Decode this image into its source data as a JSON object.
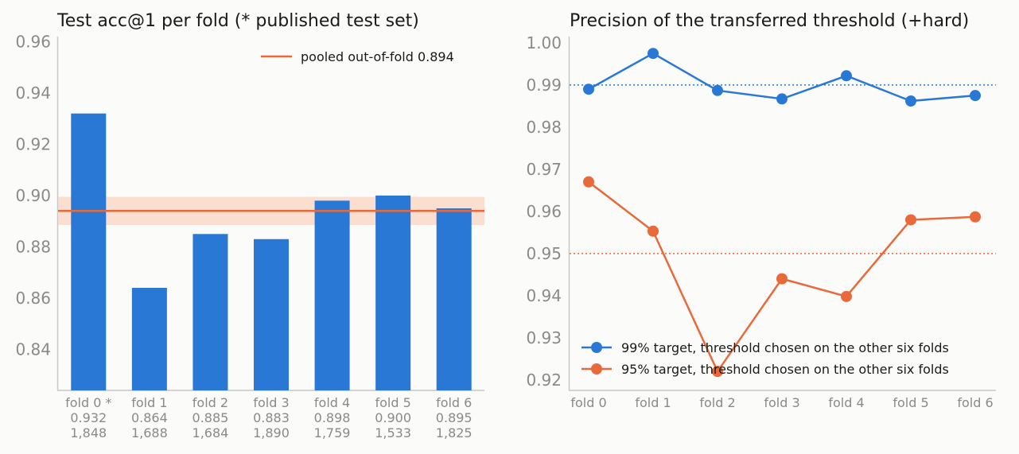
{
  "chart_data": [
    {
      "type": "bar",
      "title": "Test acc@1 per fold (* published test set)",
      "categories": [
        "fold 0 *",
        "fold 1",
        "fold 2",
        "fold 3",
        "fold 4",
        "fold 5",
        "fold 6"
      ],
      "values": [
        0.932,
        0.864,
        0.885,
        0.883,
        0.898,
        0.9,
        0.895
      ],
      "value_labels": [
        "0.932",
        "0.864",
        "0.885",
        "0.883",
        "0.898",
        "0.900",
        "0.895"
      ],
      "count_labels": [
        "1,848",
        "1,688",
        "1,684",
        "1,890",
        "1,759",
        "1,533",
        "1,825"
      ],
      "yticks": [
        "0.84",
        "0.86",
        "0.88",
        "0.90",
        "0.92",
        "0.94",
        "0.96"
      ],
      "ytick_values": [
        0.84,
        0.86,
        0.88,
        0.9,
        0.92,
        0.94,
        0.96
      ],
      "ylim": [
        0.824,
        0.962
      ],
      "reference_line": {
        "label": "pooled out-of-fold 0.894",
        "value": 0.894,
        "band": [
          0.8885,
          0.8995
        ]
      },
      "bar_color": "#2a78d6",
      "line_color": "#e8693a",
      "band_color": "#f9d8c9",
      "legend_position": "top-right"
    },
    {
      "type": "line",
      "title": "Precision of the transferred threshold (+hard)",
      "x": [
        "fold 0",
        "fold 1",
        "fold 2",
        "fold 3",
        "fold 4",
        "fold 5",
        "fold 6"
      ],
      "series": [
        {
          "name": "99% target, threshold chosen on the other six folds",
          "values": [
            0.989,
            0.9975,
            0.9887,
            0.9867,
            0.9922,
            0.9862,
            0.9875
          ],
          "color": "#2a78d6",
          "target": 0.99
        },
        {
          "name": "95% target, threshold chosen on the other six folds",
          "values": [
            0.967,
            0.9553,
            0.922,
            0.944,
            0.9398,
            0.958,
            0.9587
          ],
          "color": "#e8693a",
          "target": 0.95
        }
      ],
      "yticks": [
        "0.92",
        "0.93",
        "0.94",
        "0.95",
        "0.96",
        "0.97",
        "0.98",
        "0.99",
        "1.00"
      ],
      "ytick_values": [
        0.92,
        0.93,
        0.94,
        0.95,
        0.96,
        0.97,
        0.98,
        0.99,
        1.0
      ],
      "ylim": [
        0.9175,
        1.0015
      ],
      "legend_position": "bottom-left"
    }
  ]
}
